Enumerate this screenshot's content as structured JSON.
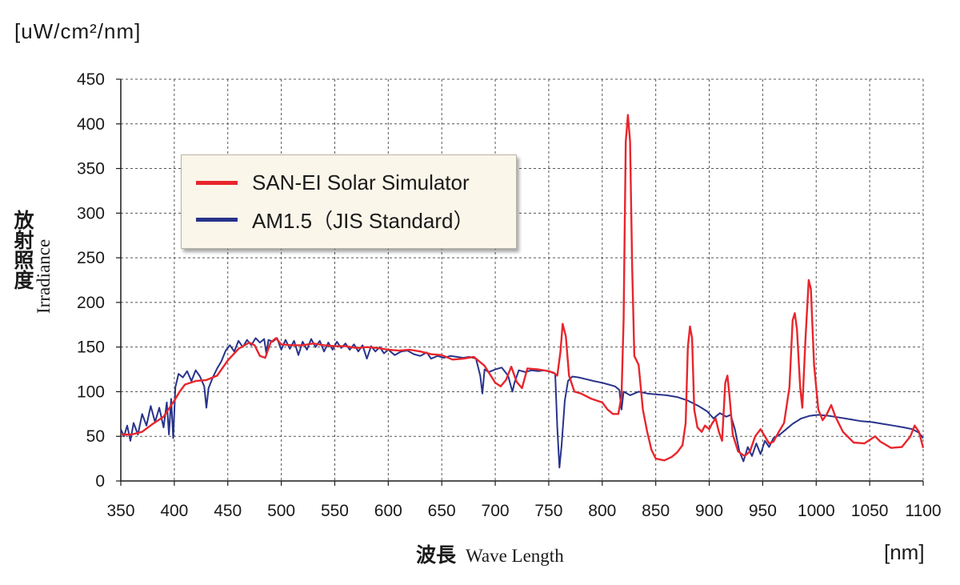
{
  "chart_data": {
    "type": "line",
    "y_unit": "[uW/cm²/nm]",
    "x_unit": "[nm]",
    "ylabel_jp": "放射照度",
    "ylabel_en": "Irradiance",
    "xlabel_jp": "波長",
    "xlabel_en": "Wave Length",
    "xlim": [
      350,
      1100
    ],
    "ylim": [
      0,
      450
    ],
    "x_ticks": [
      350,
      400,
      450,
      500,
      550,
      600,
      650,
      700,
      750,
      800,
      850,
      900,
      950,
      1000,
      1050,
      1100
    ],
    "y_ticks": [
      0,
      50,
      100,
      150,
      200,
      250,
      300,
      350,
      400,
      450
    ],
    "grid": true,
    "legend_position": "upper-left",
    "series": [
      {
        "name": "SAN-EI Solar Simulator",
        "color": "#e8262c",
        "points": [
          [
            350,
            52
          ],
          [
            360,
            52
          ],
          [
            370,
            55
          ],
          [
            380,
            64
          ],
          [
            390,
            72
          ],
          [
            400,
            90
          ],
          [
            405,
            100
          ],
          [
            410,
            108
          ],
          [
            420,
            112
          ],
          [
            430,
            113
          ],
          [
            440,
            118
          ],
          [
            450,
            135
          ],
          [
            460,
            148
          ],
          [
            470,
            155
          ],
          [
            475,
            152
          ],
          [
            480,
            140
          ],
          [
            485,
            138
          ],
          [
            490,
            155
          ],
          [
            495,
            160
          ],
          [
            500,
            153
          ],
          [
            510,
            152
          ],
          [
            520,
            152
          ],
          [
            530,
            154
          ],
          [
            540,
            152
          ],
          [
            550,
            151
          ],
          [
            560,
            151
          ],
          [
            570,
            149
          ],
          [
            580,
            150
          ],
          [
            590,
            149
          ],
          [
            600,
            147
          ],
          [
            610,
            146
          ],
          [
            620,
            147
          ],
          [
            630,
            145
          ],
          [
            640,
            142
          ],
          [
            650,
            141
          ],
          [
            660,
            136
          ],
          [
            670,
            137
          ],
          [
            680,
            139
          ],
          [
            690,
            129
          ],
          [
            700,
            110
          ],
          [
            705,
            106
          ],
          [
            710,
            113
          ],
          [
            715,
            128
          ],
          [
            720,
            111
          ],
          [
            725,
            104
          ],
          [
            730,
            126
          ],
          [
            740,
            125
          ],
          [
            750,
            123
          ],
          [
            755,
            121
          ],
          [
            758,
            118
          ],
          [
            761,
            145
          ],
          [
            763,
            176
          ],
          [
            766,
            162
          ],
          [
            769,
            118
          ],
          [
            774,
            100
          ],
          [
            780,
            98
          ],
          [
            785,
            95
          ],
          [
            790,
            92
          ],
          [
            795,
            90
          ],
          [
            800,
            88
          ],
          [
            805,
            80
          ],
          [
            810,
            75
          ],
          [
            815,
            75
          ],
          [
            818,
            95
          ],
          [
            820,
            180
          ],
          [
            822,
            380
          ],
          [
            824,
            410
          ],
          [
            826,
            380
          ],
          [
            828,
            240
          ],
          [
            830,
            140
          ],
          [
            834,
            130
          ],
          [
            838,
            80
          ],
          [
            842,
            55
          ],
          [
            846,
            35
          ],
          [
            850,
            25
          ],
          [
            858,
            23
          ],
          [
            865,
            27
          ],
          [
            870,
            32
          ],
          [
            875,
            40
          ],
          [
            878,
            65
          ],
          [
            880,
            150
          ],
          [
            882,
            173
          ],
          [
            884,
            160
          ],
          [
            886,
            80
          ],
          [
            889,
            60
          ],
          [
            893,
            55
          ],
          [
            896,
            62
          ],
          [
            900,
            58
          ],
          [
            903,
            65
          ],
          [
            906,
            70
          ],
          [
            909,
            55
          ],
          [
            912,
            45
          ],
          [
            915,
            110
          ],
          [
            917,
            118
          ],
          [
            919,
            95
          ],
          [
            922,
            52
          ],
          [
            927,
            33
          ],
          [
            933,
            28
          ],
          [
            938,
            33
          ],
          [
            943,
            50
          ],
          [
            948,
            58
          ],
          [
            952,
            50
          ],
          [
            956,
            42
          ],
          [
            960,
            44
          ],
          [
            965,
            55
          ],
          [
            970,
            65
          ],
          [
            975,
            105
          ],
          [
            978,
            180
          ],
          [
            980,
            188
          ],
          [
            982,
            170
          ],
          [
            985,
            105
          ],
          [
            987,
            82
          ],
          [
            990,
            160
          ],
          [
            993,
            225
          ],
          [
            995,
            215
          ],
          [
            998,
            130
          ],
          [
            1002,
            80
          ],
          [
            1006,
            68
          ],
          [
            1010,
            75
          ],
          [
            1014,
            85
          ],
          [
            1018,
            72
          ],
          [
            1025,
            55
          ],
          [
            1035,
            43
          ],
          [
            1045,
            42
          ],
          [
            1050,
            46
          ],
          [
            1055,
            50
          ],
          [
            1060,
            44
          ],
          [
            1070,
            37
          ],
          [
            1080,
            38
          ],
          [
            1088,
            50
          ],
          [
            1092,
            62
          ],
          [
            1096,
            55
          ],
          [
            1100,
            37
          ]
        ]
      },
      {
        "name": "AM1.5（JIS Standard）",
        "color": "#28338a",
        "points": [
          [
            350,
            58
          ],
          [
            353,
            50
          ],
          [
            356,
            62
          ],
          [
            359,
            45
          ],
          [
            362,
            65
          ],
          [
            366,
            52
          ],
          [
            370,
            75
          ],
          [
            374,
            62
          ],
          [
            378,
            84
          ],
          [
            382,
            66
          ],
          [
            386,
            82
          ],
          [
            390,
            60
          ],
          [
            393,
            88
          ],
          [
            395,
            52
          ],
          [
            397,
            92
          ],
          [
            399,
            48
          ],
          [
            401,
            105
          ],
          [
            404,
            120
          ],
          [
            408,
            116
          ],
          [
            412,
            123
          ],
          [
            416,
            112
          ],
          [
            420,
            124
          ],
          [
            424,
            117
          ],
          [
            428,
            106
          ],
          [
            430,
            82
          ],
          [
            432,
            104
          ],
          [
            436,
            116
          ],
          [
            440,
            126
          ],
          [
            444,
            134
          ],
          [
            448,
            146
          ],
          [
            452,
            152
          ],
          [
            456,
            145
          ],
          [
            460,
            157
          ],
          [
            464,
            150
          ],
          [
            468,
            158
          ],
          [
            472,
            152
          ],
          [
            476,
            160
          ],
          [
            480,
            155
          ],
          [
            484,
            159
          ],
          [
            486,
            143
          ],
          [
            488,
            158
          ],
          [
            492,
            156
          ],
          [
            496,
            160
          ],
          [
            500,
            147
          ],
          [
            504,
            158
          ],
          [
            508,
            148
          ],
          [
            512,
            157
          ],
          [
            516,
            141
          ],
          [
            520,
            156
          ],
          [
            524,
            147
          ],
          [
            528,
            159
          ],
          [
            532,
            150
          ],
          [
            536,
            157
          ],
          [
            540,
            145
          ],
          [
            544,
            155
          ],
          [
            548,
            147
          ],
          [
            552,
            156
          ],
          [
            556,
            149
          ],
          [
            560,
            154
          ],
          [
            564,
            147
          ],
          [
            568,
            153
          ],
          [
            572,
            145
          ],
          [
            576,
            152
          ],
          [
            580,
            137
          ],
          [
            584,
            151
          ],
          [
            588,
            145
          ],
          [
            592,
            150
          ],
          [
            596,
            143
          ],
          [
            600,
            147
          ],
          [
            606,
            141
          ],
          [
            612,
            145
          ],
          [
            618,
            146
          ],
          [
            624,
            142
          ],
          [
            630,
            140
          ],
          [
            636,
            144
          ],
          [
            640,
            137
          ],
          [
            646,
            140
          ],
          [
            652,
            138
          ],
          [
            658,
            140
          ],
          [
            664,
            139
          ],
          [
            670,
            138
          ],
          [
            676,
            139
          ],
          [
            682,
            137
          ],
          [
            686,
            118
          ],
          [
            688,
            98
          ],
          [
            690,
            125
          ],
          [
            694,
            122
          ],
          [
            700,
            125
          ],
          [
            706,
            127
          ],
          [
            712,
            118
          ],
          [
            716,
            100
          ],
          [
            718,
            110
          ],
          [
            722,
            124
          ],
          [
            728,
            122
          ],
          [
            734,
            124
          ],
          [
            740,
            123
          ],
          [
            746,
            124
          ],
          [
            752,
            122
          ],
          [
            756,
            120
          ],
          [
            758,
            60
          ],
          [
            760,
            15
          ],
          [
            762,
            40
          ],
          [
            765,
            90
          ],
          [
            768,
            112
          ],
          [
            772,
            117
          ],
          [
            778,
            116
          ],
          [
            785,
            114
          ],
          [
            792,
            112
          ],
          [
            800,
            110
          ],
          [
            806,
            108
          ],
          [
            812,
            106
          ],
          [
            816,
            102
          ],
          [
            818,
            80
          ],
          [
            820,
            100
          ],
          [
            826,
            96
          ],
          [
            834,
            100
          ],
          [
            842,
            98
          ],
          [
            850,
            97
          ],
          [
            860,
            96
          ],
          [
            870,
            94
          ],
          [
            880,
            90
          ],
          [
            890,
            84
          ],
          [
            898,
            78
          ],
          [
            904,
            70
          ],
          [
            910,
            76
          ],
          [
            916,
            72
          ],
          [
            920,
            74
          ],
          [
            924,
            58
          ],
          [
            928,
            34
          ],
          [
            932,
            22
          ],
          [
            936,
            38
          ],
          [
            940,
            28
          ],
          [
            944,
            42
          ],
          [
            948,
            30
          ],
          [
            952,
            45
          ],
          [
            956,
            38
          ],
          [
            960,
            48
          ],
          [
            966,
            52
          ],
          [
            972,
            58
          ],
          [
            978,
            64
          ],
          [
            986,
            70
          ],
          [
            994,
            73
          ],
          [
            1002,
            74
          ],
          [
            1012,
            73
          ],
          [
            1022,
            71
          ],
          [
            1032,
            69
          ],
          [
            1042,
            67
          ],
          [
            1052,
            66
          ],
          [
            1062,
            64
          ],
          [
            1072,
            62
          ],
          [
            1082,
            60
          ],
          [
            1090,
            58
          ],
          [
            1096,
            54
          ],
          [
            1100,
            48
          ]
        ]
      }
    ]
  }
}
